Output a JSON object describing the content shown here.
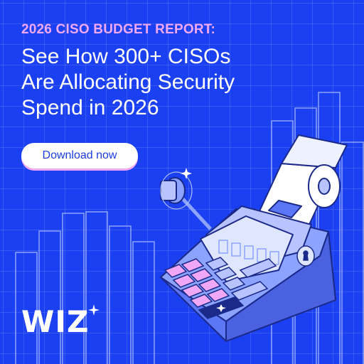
{
  "ad": {
    "eyebrow": "2026 CISO BUDGET REPORT:",
    "headline_lines": [
      "See How 300+ CISOs",
      "Are Allocating Security",
      "Spend in 2026"
    ],
    "cta_label": "Download now",
    "logo": "WIZ"
  },
  "colors": {
    "background": "#1b40f2",
    "eyebrow": "#f0a8f6",
    "headline": "#ffffff",
    "cta_bg": "#ffffff",
    "cta_text": "#1b3de0",
    "calculator_body": "#8ca3ff",
    "calculator_keys_pink": "#f0a8f6"
  },
  "illustration": {
    "subject": "adding-machine calculator with paper roll",
    "icons": [
      "sparkle-icon",
      "star-icon",
      "keyhole-icon"
    ]
  }
}
